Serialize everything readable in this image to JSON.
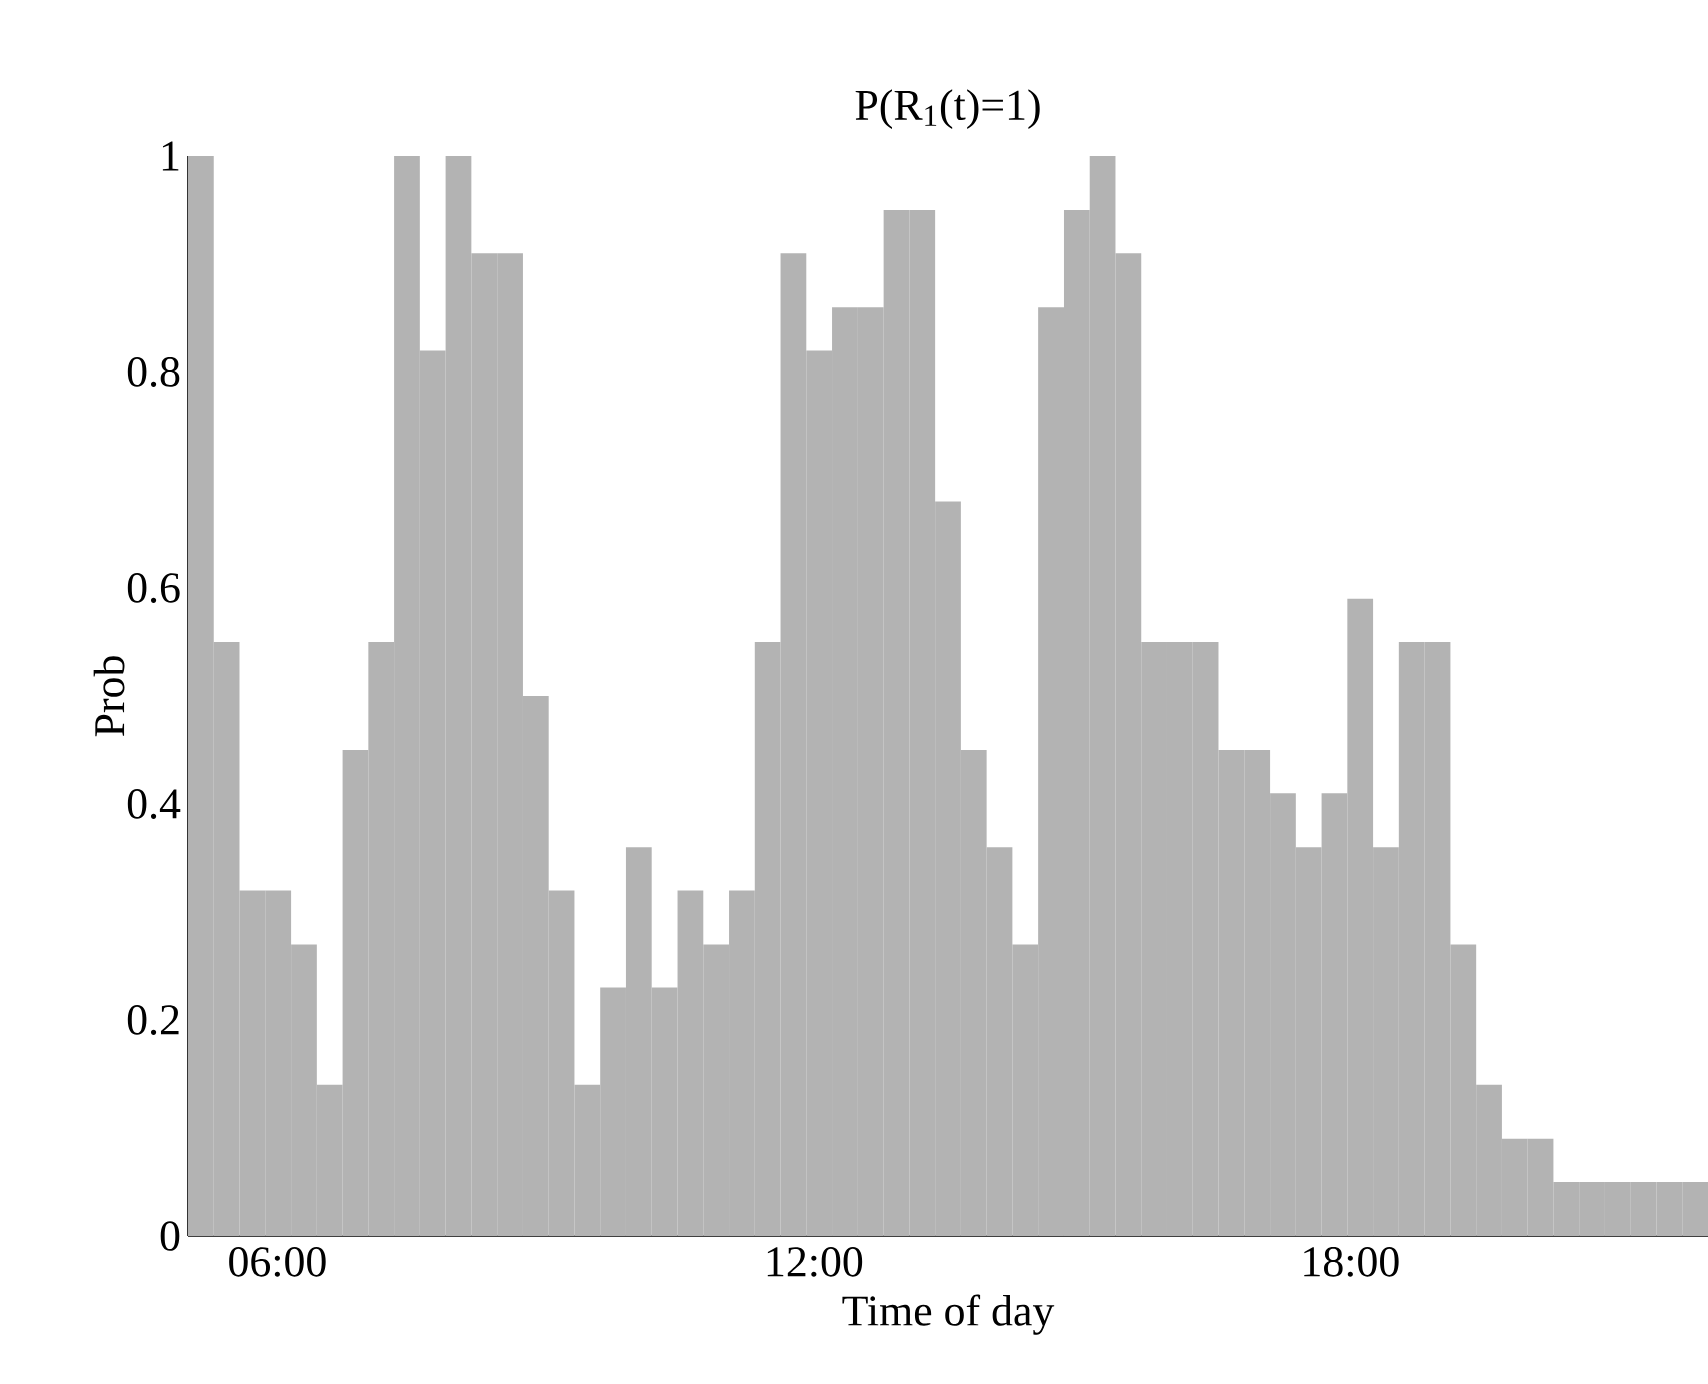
{
  "chart_data": {
    "type": "histogram",
    "title": "P(R$_{1}$(t)=1)",
    "xlabel": "Time of day",
    "ylabel": "Prob",
    "color": "#b3b3b3",
    "bins": [
      5,
      5.288,
      5.576,
      5.864,
      6.153,
      6.441,
      6.729,
      7.017,
      7.305,
      7.593,
      7.881,
      8.169,
      8.458,
      8.746,
      9.034,
      9.322,
      9.61,
      9.898,
      10.186,
      10.475,
      10.763,
      11.051,
      11.339,
      11.627,
      11.915,
      12.203,
      12.492,
      12.78,
      13.068,
      13.356,
      13.644,
      13.932,
      14.22,
      14.508,
      14.797,
      15.085,
      15.373,
      15.661,
      15.949,
      16.237,
      16.525,
      16.814,
      17.102,
      17.39,
      17.678,
      17.966,
      18.254,
      18.542,
      18.831,
      19.119,
      19.407,
      19.695,
      19.983,
      20.271,
      20.559,
      20.847,
      21.136,
      21.424,
      21.712,
      22
    ],
    "values": [
      1,
      0.55,
      0.32,
      0.32,
      0.27,
      0.14,
      0.45,
      0.55,
      1,
      0.82,
      1,
      0.91,
      0.91,
      0.5,
      0.32,
      0.14,
      0.23,
      0.36,
      0.23,
      0.32,
      0.27,
      0.32,
      0.55,
      0.91,
      0.82,
      0.86,
      0.86,
      0.95,
      0.95,
      0.68,
      0.45,
      0.36,
      0.27,
      0.86,
      0.95,
      1,
      0.91,
      0.55,
      0.55,
      0.55,
      0.45,
      0.45,
      0.41,
      0.36,
      0.41,
      0.59,
      0.36,
      0.55,
      0.55,
      0.27,
      0.14,
      0.09,
      0.09,
      0.05,
      0.05,
      0.05,
      0.05,
      0.05,
      0.05
    ],
    "xlim": [
      5,
      22
    ],
    "ylim": [
      0,
      1
    ],
    "xticks": [
      {
        "value": 6,
        "label": "06:00"
      },
      {
        "value": 12,
        "label": "12:00"
      },
      {
        "value": 18,
        "label": "18:00"
      }
    ],
    "yticks": [
      0,
      0.2,
      0.4,
      0.6,
      0.8,
      1
    ]
  }
}
